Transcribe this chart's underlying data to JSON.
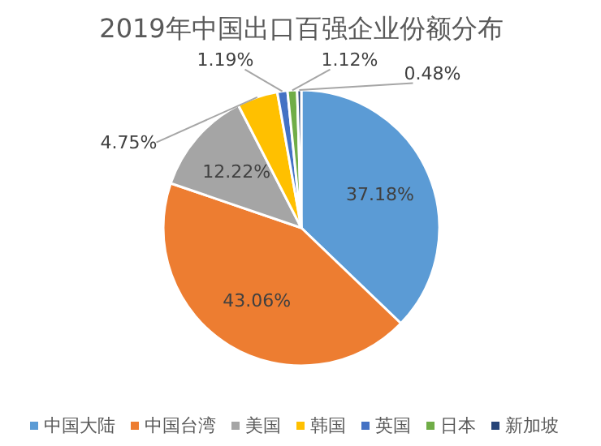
{
  "chart_data": {
    "type": "pie",
    "title": "2019年中国出口百强企业份额分布",
    "categories": [
      "中国大陆",
      "中国台湾",
      "美国",
      "韩国",
      "英国",
      "日本",
      "新加坡"
    ],
    "values": [
      37.18,
      43.06,
      12.22,
      4.75,
      1.19,
      1.12,
      0.48
    ],
    "colors": [
      "#5b9bd5",
      "#ed7d31",
      "#a5a5a5",
      "#ffc000",
      "#4472c4",
      "#70ad47",
      "#264478"
    ],
    "value_labels": [
      "37.18%",
      "43.06%",
      "12.22%",
      "4.75%",
      "1.19%",
      "1.12%",
      "0.48%"
    ],
    "legend": "bottom"
  }
}
